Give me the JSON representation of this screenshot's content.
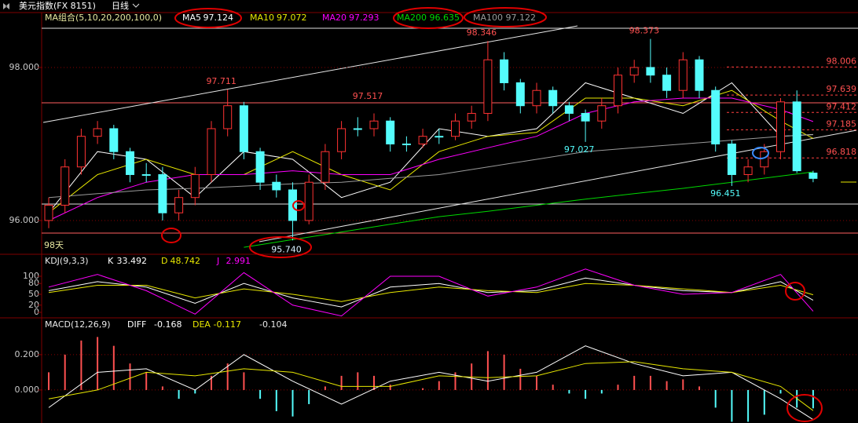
{
  "header": {
    "symbol": "美元指数(FX 8151)",
    "period": "日线"
  },
  "chart_data": [
    {
      "type": "candlestick",
      "indicator": "MA组合(5,10,20,200,100,0)",
      "footnote": "98天",
      "up_color": "#ff3232",
      "down_color": "#54fcfc",
      "open": [
        96.0,
        96.2,
        96.7,
        97.1,
        97.2,
        96.9,
        96.6,
        96.6,
        96.1,
        96.3,
        96.6,
        97.2,
        97.5,
        96.9,
        96.5,
        96.4,
        96.0,
        96.5,
        96.9,
        97.2,
        97.2,
        97.3,
        97.0,
        97.0,
        97.1,
        97.1,
        97.3,
        97.4,
        98.1,
        97.8,
        97.5,
        97.7,
        97.5,
        97.4,
        97.3,
        97.5,
        97.9,
        98.0,
        97.9,
        97.7,
        98.1,
        97.7,
        97.0,
        96.6,
        96.7,
        96.9,
        97.55,
        96.62
      ],
      "high": [
        96.3,
        96.8,
        97.2,
        97.3,
        97.25,
        96.95,
        96.75,
        96.7,
        96.4,
        96.7,
        97.3,
        97.711,
        97.55,
        96.95,
        96.6,
        96.5,
        96.6,
        97.0,
        97.3,
        97.35,
        97.4,
        97.35,
        97.1,
        97.2,
        97.2,
        97.4,
        97.5,
        98.346,
        98.2,
        97.85,
        97.8,
        97.75,
        97.55,
        97.45,
        97.6,
        98.0,
        98.1,
        98.373,
        98.0,
        98.2,
        98.15,
        97.75,
        97.05,
        96.8,
        97.0,
        97.6,
        97.7,
        96.65
      ],
      "low": [
        95.9,
        96.1,
        96.6,
        97.0,
        96.8,
        96.5,
        96.5,
        96.0,
        96.0,
        96.2,
        96.5,
        97.1,
        96.8,
        96.4,
        96.3,
        95.74,
        95.95,
        96.4,
        96.8,
        97.1,
        97.1,
        96.9,
        96.9,
        96.95,
        97.0,
        97.05,
        97.2,
        97.3,
        97.7,
        97.4,
        97.4,
        97.4,
        97.3,
        97.027,
        97.2,
        97.4,
        97.8,
        97.8,
        97.6,
        97.6,
        97.6,
        96.9,
        96.451,
        96.5,
        96.6,
        96.8,
        96.62,
        96.5
      ],
      "close": [
        96.2,
        96.7,
        97.1,
        97.2,
        96.9,
        96.6,
        96.6,
        96.1,
        96.3,
        96.6,
        97.2,
        97.5,
        96.9,
        96.5,
        96.4,
        96.0,
        96.5,
        96.9,
        97.2,
        97.2,
        97.3,
        97.0,
        97.0,
        97.1,
        97.1,
        97.3,
        97.4,
        98.1,
        97.8,
        97.5,
        97.7,
        97.5,
        97.4,
        97.3,
        97.5,
        97.9,
        98.0,
        97.9,
        97.7,
        98.1,
        97.7,
        97.0,
        96.6,
        96.7,
        96.9,
        97.55,
        96.65,
        96.55
      ],
      "series": [
        {
          "name": "MA5",
          "color": "#ffffff",
          "x": [
            0,
            3,
            6,
            9,
            12,
            15,
            18,
            21,
            24,
            27,
            30,
            33,
            36,
            39,
            42,
            45,
            47
          ],
          "values": [
            96.1,
            96.9,
            96.8,
            96.3,
            96.9,
            96.8,
            96.3,
            96.5,
            97.2,
            97.1,
            97.2,
            97.8,
            97.6,
            97.4,
            97.8,
            97.1,
            97.124
          ]
        },
        {
          "name": "MA10",
          "color": "#e8e800",
          "x": [
            0,
            3,
            6,
            9,
            12,
            15,
            18,
            21,
            24,
            27,
            30,
            33,
            36,
            39,
            42,
            45,
            47
          ],
          "values": [
            96.1,
            96.6,
            96.8,
            96.6,
            96.6,
            96.9,
            96.6,
            96.4,
            96.9,
            97.1,
            97.15,
            97.6,
            97.6,
            97.5,
            97.7,
            97.3,
            97.072
          ]
        },
        {
          "name": "MA20",
          "color": "#ff00ff",
          "x": [
            0,
            3,
            6,
            9,
            12,
            15,
            18,
            21,
            24,
            27,
            30,
            33,
            36,
            39,
            42,
            45,
            47
          ],
          "values": [
            96.0,
            96.3,
            96.5,
            96.6,
            96.6,
            96.65,
            96.6,
            96.6,
            96.8,
            96.95,
            97.1,
            97.4,
            97.55,
            97.6,
            97.6,
            97.45,
            97.293
          ]
        },
        {
          "name": "MA200",
          "color": "#00d800",
          "x": [
            0,
            3,
            6,
            9,
            12,
            15,
            18,
            21,
            24,
            27,
            30,
            33,
            36,
            39,
            42,
            45,
            47
          ],
          "values": [
            null,
            null,
            null,
            null,
            95.65,
            95.75,
            95.85,
            95.95,
            96.05,
            96.12,
            96.2,
            96.28,
            96.35,
            96.42,
            96.5,
            96.58,
            96.635
          ]
        },
        {
          "name": "MA100",
          "color": "#9a9a9a",
          "x": [
            0,
            3,
            6,
            9,
            12,
            15,
            18,
            21,
            24,
            27,
            30,
            33,
            36,
            39,
            42,
            45,
            47
          ],
          "values": [
            96.3,
            96.35,
            96.4,
            96.42,
            96.45,
            96.48,
            96.5,
            96.55,
            96.6,
            96.7,
            96.8,
            96.9,
            96.95,
            97.0,
            97.05,
            97.1,
            97.122
          ]
        }
      ],
      "annotations": [
        {
          "value": 97.711,
          "label": "97.711",
          "color": "#ff5050"
        },
        {
          "value": 97.517,
          "label": "97.517",
          "color": "#ff5050"
        },
        {
          "value": 98.346,
          "label": "98.346",
          "color": "#ff5050"
        },
        {
          "value": 98.373,
          "label": "98.373",
          "color": "#ff5050"
        },
        {
          "value": 97.027,
          "label": "97.027",
          "color": "#54fcfc"
        },
        {
          "value": 96.451,
          "label": "96.451",
          "color": "#54fcfc"
        },
        {
          "value": 95.74,
          "label": "95.740",
          "color": "#d8f0ff"
        }
      ],
      "levels": [
        {
          "value": 98.006,
          "label": "98.006"
        },
        {
          "value": 97.639,
          "label": "97.639"
        },
        {
          "value": 97.412,
          "label": "97.412"
        },
        {
          "value": 97.185,
          "label": "97.185"
        },
        {
          "value": 96.818,
          "label": "96.818"
        }
      ],
      "ylim": [
        95.579,
        98.574
      ],
      "yticks": [
        {
          "value": 96,
          "label": "96.000"
        },
        {
          "value": 98,
          "label": "98.000"
        }
      ],
      "grid": true
    },
    {
      "type": "line",
      "title": "KDJ(9,3,3)",
      "series": [
        {
          "name": "K",
          "color": "#ffffff",
          "x": [
            0,
            3,
            6,
            9,
            12,
            15,
            18,
            21,
            24,
            27,
            30,
            33,
            36,
            39,
            42,
            45,
            47
          ],
          "values": [
            60,
            85,
            70,
            25,
            80,
            40,
            15,
            70,
            80,
            55,
            60,
            95,
            75,
            60,
            55,
            85,
            33.492
          ]
        },
        {
          "name": "D",
          "color": "#e8e800",
          "x": [
            0,
            3,
            6,
            9,
            12,
            15,
            18,
            21,
            24,
            27,
            30,
            33,
            36,
            39,
            42,
            45,
            47
          ],
          "values": [
            55,
            75,
            75,
            40,
            65,
            50,
            30,
            55,
            70,
            60,
            55,
            80,
            75,
            65,
            55,
            75,
            48.742
          ]
        },
        {
          "name": "J",
          "color": "#ff00ff",
          "x": [
            0,
            3,
            6,
            9,
            12,
            15,
            18,
            21,
            24,
            27,
            30,
            33,
            36,
            39,
            42,
            45,
            47
          ],
          "values": [
            70,
            105,
            60,
            -5,
            110,
            20,
            -10,
            100,
            100,
            45,
            70,
            120,
            75,
            50,
            55,
            105,
            2.991
          ]
        }
      ],
      "ylim": [
        -13,
        156.5
      ],
      "yticks": [
        100,
        80,
        50,
        20,
        0
      ],
      "grid": false
    },
    {
      "type": "histogram",
      "title": "MACD(12,26,9)",
      "up_color": "#ff5050",
      "down_color": "#54fcfc",
      "values": [
        0.1,
        0.2,
        0.28,
        0.3,
        0.25,
        0.15,
        0.1,
        0.02,
        -0.05,
        -0.02,
        0.08,
        0.15,
        0.1,
        -0.05,
        -0.12,
        -0.15,
        -0.08,
        0.02,
        0.08,
        0.1,
        0.08,
        0.03,
        0.0,
        0.01,
        0.05,
        0.1,
        0.15,
        0.22,
        0.2,
        0.12,
        0.08,
        0.03,
        -0.02,
        -0.05,
        -0.02,
        0.03,
        0.08,
        0.08,
        0.05,
        0.06,
        0.02,
        -0.1,
        -0.18,
        -0.18,
        -0.14,
        -0.02,
        -0.1,
        -0.104
      ],
      "series": [
        {
          "name": "DIFF",
          "color": "#ffffff",
          "x": [
            0,
            3,
            6,
            9,
            12,
            15,
            18,
            21,
            24,
            27,
            30,
            33,
            36,
            39,
            42,
            45,
            47
          ],
          "values": [
            -0.1,
            0.1,
            0.12,
            0.0,
            0.2,
            0.05,
            -0.08,
            0.05,
            0.1,
            0.05,
            0.1,
            0.25,
            0.15,
            0.08,
            0.1,
            -0.05,
            -0.168
          ]
        },
        {
          "name": "DEA",
          "color": "#e8e800",
          "x": [
            0,
            3,
            6,
            9,
            12,
            15,
            18,
            21,
            24,
            27,
            30,
            33,
            36,
            39,
            42,
            45,
            47
          ],
          "values": [
            -0.05,
            0.0,
            0.1,
            0.08,
            0.12,
            0.1,
            0.02,
            0.02,
            0.08,
            0.07,
            0.08,
            0.15,
            0.16,
            0.12,
            0.1,
            0.02,
            -0.117
          ]
        }
      ],
      "ylim": [
        -0.187,
        0.404
      ],
      "yticks": [
        {
          "value": 0.2,
          "label": "0.200"
        },
        {
          "value": 0,
          "label": "0.000"
        }
      ],
      "grid": true
    }
  ]
}
